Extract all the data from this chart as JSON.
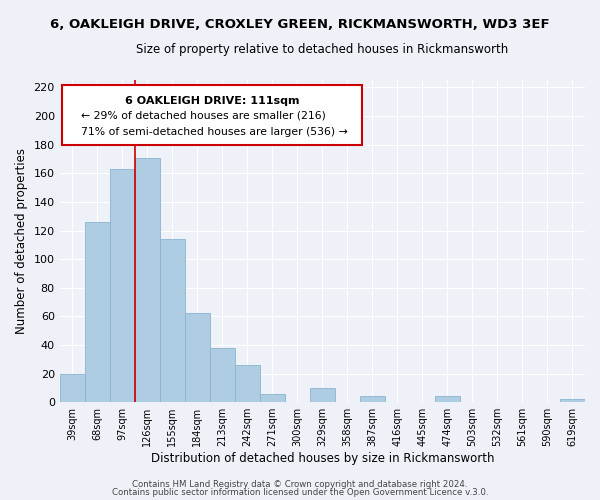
{
  "title": "6, OAKLEIGH DRIVE, CROXLEY GREEN, RICKMANSWORTH, WD3 3EF",
  "subtitle": "Size of property relative to detached houses in Rickmansworth",
  "xlabel": "Distribution of detached houses by size in Rickmansworth",
  "ylabel": "Number of detached properties",
  "bar_color": "#aecde3",
  "bar_edge_color": "#8ab4cf",
  "categories": [
    "39sqm",
    "68sqm",
    "97sqm",
    "126sqm",
    "155sqm",
    "184sqm",
    "213sqm",
    "242sqm",
    "271sqm",
    "300sqm",
    "329sqm",
    "358sqm",
    "387sqm",
    "416sqm",
    "445sqm",
    "474sqm",
    "503sqm",
    "532sqm",
    "561sqm",
    "590sqm",
    "619sqm"
  ],
  "values": [
    20,
    126,
    163,
    171,
    114,
    62,
    38,
    26,
    6,
    0,
    10,
    0,
    4,
    0,
    0,
    4,
    0,
    0,
    0,
    0,
    2
  ],
  "ylim": [
    0,
    225
  ],
  "yticks": [
    0,
    20,
    40,
    60,
    80,
    100,
    120,
    140,
    160,
    180,
    200,
    220
  ],
  "vline_color": "#cc0000",
  "vline_bar_index": 3,
  "annotation_title": "6 OAKLEIGH DRIVE: 111sqm",
  "annotation_line1": "← 29% of detached houses are smaller (216)",
  "annotation_line2": "71% of semi-detached houses are larger (536) →",
  "annotation_box_color": "#ffffff",
  "annotation_box_edge": "#cc0000",
  "footer1": "Contains HM Land Registry data © Crown copyright and database right 2024.",
  "footer2": "Contains public sector information licensed under the Open Government Licence v.3.0.",
  "background_color": "#eef2f8",
  "plot_bg_color": "#eef2f8",
  "grid_color": "#ffffff"
}
